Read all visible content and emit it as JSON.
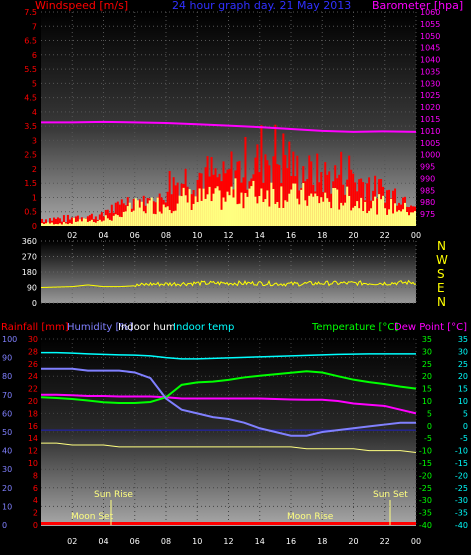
{
  "header": {
    "wind_label": "Windspeed [m/s]",
    "title": "24 hour graph day. 21 May 2013",
    "baro_label": "Barometer [hpa]"
  },
  "bottom_header": {
    "rain_label": "Rainfall [mm]",
    "hum_label": "Humidity [%]",
    "indoor_hum_label": "Indoor hum",
    "indoor_temp_label": "Indoor temp",
    "temp_label": "Temperature [°C]",
    "dew_label": "Dew Point [°C]"
  },
  "x_ticks": [
    "02",
    "04",
    "06",
    "08",
    "10",
    "12",
    "14",
    "16",
    "18",
    "20",
    "22",
    "00"
  ],
  "annotations": {
    "sun_rise": "Sun Rise",
    "sun_set": "Sun Set",
    "moon_set": "Moon Set",
    "moon_rise": "Moon Rise"
  },
  "colors": {
    "wind": "#ff0000",
    "gust": "#ffff80",
    "barometer": "#ff00ff",
    "direction": "#ffff00",
    "humidity": "#8080ff",
    "indoor_hum": "#ffff80",
    "indoor_temp": "#00ffff",
    "temperature": "#00ff00",
    "dew_point": "#ff00ff",
    "rain": "#ff0000"
  },
  "chart_data": [
    {
      "type": "bar",
      "name": "wind",
      "y_left_ticks": [
        "0",
        "0.5",
        "1",
        "1.5",
        "2",
        "2.5",
        "3",
        "3.5",
        "4",
        "4.5",
        "5",
        "5.5",
        "6",
        "6.5",
        "7",
        "7.5"
      ],
      "y_right_ticks": [
        "975",
        "980",
        "985",
        "990",
        "995",
        "1000",
        "1005",
        "1010",
        "1015",
        "1020",
        "1025",
        "1030",
        "1035",
        "1040",
        "1045",
        "1050",
        "1055",
        "1060"
      ],
      "ylim_left": [
        0,
        7.5
      ],
      "ylim_right": [
        970,
        1060
      ],
      "x_hours": [
        0,
        24
      ],
      "windspeed_max": [
        0.4,
        0.4,
        0.5,
        0.5,
        0.9,
        1.2,
        1.1,
        1.2,
        2.2,
        2.4,
        2.6,
        2.3,
        2.8,
        3.2,
        3.8,
        3.6,
        2.8,
        2.6,
        2.5,
        2.8,
        2.2,
        1.8,
        1.6,
        1.4
      ],
      "windspeed_avg": [
        0.1,
        0.1,
        0.2,
        0.2,
        0.3,
        0.6,
        0.7,
        0.8,
        0.9,
        1.0,
        1.0,
        1.0,
        1.2,
        1.2,
        1.3,
        1.2,
        1.1,
        1.0,
        1.0,
        1.0,
        0.9,
        0.8,
        0.7,
        0.6
      ],
      "barometer_x": [
        0,
        2,
        4,
        6,
        8,
        10,
        12,
        14,
        16,
        18,
        20,
        22,
        24
      ],
      "barometer": [
        1013.6,
        1013.6,
        1013.8,
        1013.6,
        1013.3,
        1012.8,
        1012.2,
        1011.6,
        1010.8,
        1010.0,
        1009.6,
        1009.8,
        1009.6
      ]
    },
    {
      "type": "scatter",
      "name": "wind_direction",
      "y_left_ticks": [
        "0",
        "90",
        "180",
        "270",
        "360"
      ],
      "y_right_ticks": [
        "N",
        "W",
        "S",
        "E",
        "N"
      ],
      "ylim": [
        0,
        360
      ],
      "x_hours": [
        0,
        24
      ],
      "direction_x": [
        0,
        2,
        3,
        4,
        5,
        6,
        7,
        8,
        10,
        12,
        14,
        16,
        18,
        20,
        22,
        24
      ],
      "direction": [
        90,
        95,
        105,
        95,
        95,
        100,
        110,
        110,
        115,
        115,
        115,
        110,
        115,
        115,
        115,
        120
      ]
    },
    {
      "type": "line",
      "name": "climate",
      "y_left_ticks": [
        "0",
        "10",
        "20",
        "30",
        "40",
        "50",
        "60",
        "70",
        "80",
        "90",
        "100"
      ],
      "y_rain_ticks": [
        "0",
        "2",
        "4",
        "6",
        "8",
        "10",
        "12",
        "14",
        "16",
        "18",
        "20",
        "22",
        "24",
        "26",
        "28",
        "30"
      ],
      "y_temp_ticks": [
        "-40",
        "-35",
        "-30",
        "-25",
        "-20",
        "-15",
        "-10",
        "-5",
        "0",
        "5",
        "10",
        "15",
        "20",
        "25",
        "30",
        "35"
      ],
      "ylim_humidity": [
        0,
        100
      ],
      "ylim_temp": [
        -40,
        35
      ],
      "x_hours": [
        0,
        24
      ],
      "x": [
        0,
        1,
        2,
        3,
        4,
        5,
        6,
        7,
        8,
        9,
        10,
        11,
        12,
        13,
        14,
        15,
        16,
        17,
        18,
        19,
        20,
        21,
        22,
        23,
        24
      ],
      "humidity": [
        84,
        84,
        84,
        83,
        83,
        83,
        82,
        79,
        68,
        62,
        60,
        58,
        57,
        55,
        52,
        50,
        48,
        48,
        50,
        51,
        52,
        53,
        54,
        55,
        55
      ],
      "indoor_temp": [
        29.5,
        29.5,
        29.3,
        29.0,
        28.8,
        28.6,
        28.5,
        28.2,
        27.5,
        27.0,
        27.0,
        27.2,
        27.4,
        27.6,
        27.8,
        28.0,
        28.2,
        28.4,
        28.6,
        28.8,
        28.9,
        29.0,
        29.0,
        29.0,
        29.0
      ],
      "temperature": [
        11.5,
        11.2,
        10.8,
        10.2,
        9.5,
        9.2,
        9.2,
        9.6,
        11.5,
        16.5,
        17.5,
        17.8,
        18.5,
        19.5,
        20.2,
        20.8,
        21.4,
        22.0,
        21.5,
        20.0,
        18.6,
        17.6,
        16.8,
        15.8,
        15.0
      ],
      "dew_point": [
        12.5,
        12.5,
        12.3,
        12.0,
        12.0,
        11.8,
        11.8,
        11.8,
        11.5,
        11.0,
        11.0,
        11.0,
        11.0,
        11.0,
        11.0,
        10.8,
        10.6,
        10.5,
        10.5,
        10.0,
        9.0,
        8.5,
        8.0,
        6.5,
        5.0
      ],
      "indoor_hum": [
        44,
        44,
        43,
        43,
        43,
        42,
        42,
        42,
        42,
        42,
        42,
        42,
        42,
        42,
        42,
        42,
        42,
        41,
        41,
        41,
        41,
        40,
        40,
        40,
        39
      ],
      "rainfall_mm": 0,
      "baseline_hum": 51
    }
  ]
}
